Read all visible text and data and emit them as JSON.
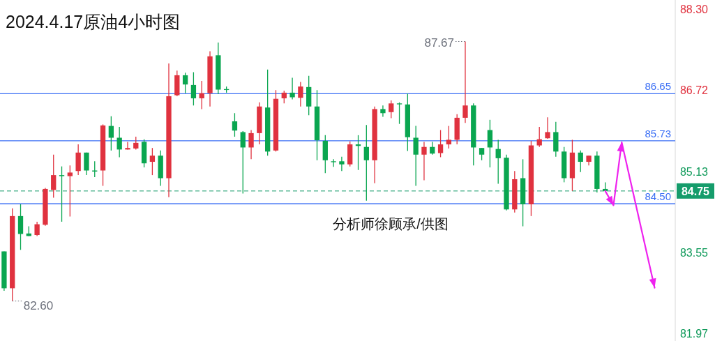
{
  "chart_data": {
    "type": "candlestick",
    "title": "2024.4.17原油4小时图",
    "categories": [
      null,
      null,
      null,
      null,
      null,
      null,
      null,
      null,
      null,
      null,
      null,
      null,
      null,
      null,
      null,
      null,
      null,
      null,
      null,
      null,
      null,
      null,
      null,
      null,
      null,
      null,
      null,
      null,
      null,
      null,
      null,
      null,
      null,
      null,
      null,
      null,
      null,
      null,
      null,
      null,
      null,
      null,
      null,
      null,
      null,
      null,
      null,
      null,
      null,
      null,
      null,
      null,
      null,
      null,
      null,
      null,
      null,
      null,
      null,
      null,
      null,
      null,
      null,
      null,
      null,
      null,
      null,
      null,
      null,
      null,
      null,
      null,
      null,
      null,
      null,
      null,
      null,
      null,
      null,
      null,
      null,
      null
    ],
    "series": [
      {
        "ohlc": [
          [
            83.57,
            83.57,
            82.8,
            82.85
          ],
          [
            82.85,
            84.41,
            82.6,
            84.26
          ],
          [
            84.26,
            84.49,
            83.6,
            83.91
          ],
          [
            83.92,
            84.06,
            83.87,
            83.87
          ],
          [
            83.89,
            84.15,
            83.87,
            84.1
          ],
          [
            84.09,
            84.81,
            84.07,
            84.79
          ],
          [
            84.77,
            85.46,
            84.62,
            85.06
          ],
          [
            85.06,
            85.23,
            84.15,
            85.04
          ],
          [
            85.04,
            85.25,
            84.25,
            85.11
          ],
          [
            85.14,
            85.66,
            85.06,
            85.5
          ],
          [
            85.5,
            85.5,
            85.06,
            85.15
          ],
          [
            85.15,
            85.33,
            85.02,
            85.13
          ],
          [
            85.15,
            86.05,
            84.85,
            86.03
          ],
          [
            86.02,
            86.21,
            85.54,
            85.79
          ],
          [
            85.79,
            86.0,
            85.41,
            85.56
          ],
          [
            85.56,
            85.71,
            85.56,
            85.59
          ],
          [
            85.58,
            85.81,
            85.56,
            85.69
          ],
          [
            85.71,
            85.76,
            85.21,
            85.29
          ],
          [
            85.32,
            85.59,
            85.06,
            85.44
          ],
          [
            85.44,
            85.54,
            84.85,
            85.0
          ],
          [
            85.0,
            87.24,
            84.63,
            86.6
          ],
          [
            86.62,
            87.1,
            86.6,
            87.01
          ],
          [
            87.01,
            87.06,
            86.66,
            86.83
          ],
          [
            86.82,
            87.07,
            86.42,
            86.56
          ],
          [
            86.56,
            86.9,
            86.35,
            86.66
          ],
          [
            86.66,
            87.48,
            86.4,
            87.38
          ],
          [
            87.4,
            87.65,
            86.64,
            86.73
          ],
          [
            86.74,
            86.79,
            86.67,
            86.73
          ],
          [
            86.11,
            86.27,
            85.81,
            85.93
          ],
          [
            85.9,
            85.92,
            84.7,
            85.6
          ],
          [
            85.6,
            85.94,
            85.37,
            85.88
          ],
          [
            85.88,
            86.48,
            85.66,
            86.4
          ],
          [
            86.38,
            87.12,
            85.44,
            85.52
          ],
          [
            85.54,
            86.72,
            85.52,
            86.55
          ],
          [
            86.56,
            86.71,
            86.46,
            86.67
          ],
          [
            86.67,
            86.96,
            86.54,
            86.58
          ],
          [
            86.57,
            86.88,
            86.4,
            86.79
          ],
          [
            86.78,
            87.0,
            86.23,
            86.4
          ],
          [
            86.4,
            86.72,
            85.35,
            85.74
          ],
          [
            85.73,
            85.84,
            85.1,
            85.35
          ],
          [
            85.33,
            85.37,
            85.22,
            85.32
          ],
          [
            85.33,
            85.42,
            85.14,
            85.27
          ],
          [
            85.27,
            85.72,
            85.23,
            85.66
          ],
          [
            85.66,
            85.84,
            85.16,
            85.63
          ],
          [
            85.61,
            86.04,
            84.56,
            85.35
          ],
          [
            85.35,
            86.4,
            84.9,
            86.35
          ],
          [
            86.35,
            86.42,
            86.2,
            86.27
          ],
          [
            86.29,
            86.52,
            86.17,
            86.46
          ],
          [
            86.46,
            86.48,
            86.06,
            86.45
          ],
          [
            86.44,
            86.65,
            85.53,
            85.8
          ],
          [
            85.79,
            86.02,
            84.85,
            85.46
          ],
          [
            85.46,
            85.71,
            84.96,
            85.61
          ],
          [
            85.61,
            85.71,
            85.46,
            85.48
          ],
          [
            85.49,
            85.94,
            85.41,
            85.66
          ],
          [
            85.66,
            86.02,
            85.58,
            85.75
          ],
          [
            85.75,
            86.25,
            85.66,
            86.18
          ],
          [
            86.18,
            87.67,
            86.08,
            86.42
          ],
          [
            86.42,
            86.46,
            85.25,
            85.6
          ],
          [
            85.59,
            85.59,
            85.35,
            85.46
          ],
          [
            85.94,
            86.14,
            85.21,
            85.6
          ],
          [
            85.57,
            85.75,
            84.89,
            85.39
          ],
          [
            85.4,
            85.46,
            84.37,
            84.39
          ],
          [
            84.39,
            85.14,
            84.33,
            84.98
          ],
          [
            85.0,
            85.37,
            84.06,
            84.49
          ],
          [
            84.49,
            85.73,
            84.26,
            85.64
          ],
          [
            85.64,
            86.0,
            85.61,
            85.76
          ],
          [
            85.78,
            86.19,
            85.77,
            85.9
          ],
          [
            85.9,
            86.1,
            85.42,
            85.52
          ],
          [
            85.52,
            85.61,
            84.92,
            85.0
          ],
          [
            85.0,
            85.75,
            84.75,
            85.5
          ],
          [
            85.5,
            85.54,
            85.12,
            85.32
          ],
          [
            85.32,
            85.44,
            85.25,
            85.44
          ],
          [
            85.44,
            85.52,
            84.72,
            84.79
          ],
          [
            84.79,
            84.92,
            84.75,
            84.75
          ],
          null,
          null,
          null,
          null,
          null,
          null,
          null,
          null
        ],
        "colors": [
          "#0aa650",
          "#e0323f",
          "#0aa650",
          "#0aa650",
          "#e0323f",
          "#e0323f",
          "#e0323f",
          "#0aa650",
          "#e0323f",
          "#e0323f",
          "#0aa650",
          "#0aa650",
          "#e0323f",
          "#0aa650",
          "#0aa650",
          "#e0323f",
          "#e0323f",
          "#0aa650",
          "#e0323f",
          "#0aa650",
          "#e0323f",
          "#e0323f",
          "#0aa650",
          "#0aa650",
          "#e0323f",
          "#e0323f",
          "#0aa650",
          "#0aa650",
          "#0aa650",
          "#0aa650",
          "#e0323f",
          "#e0323f",
          "#0aa650",
          "#e0323f",
          "#e0323f",
          "#0aa650",
          "#e0323f",
          "#0aa650",
          "#0aa650",
          "#0aa650",
          "#0aa650",
          "#0aa650",
          "#e0323f",
          "#0aa650",
          "#0aa650",
          "#e0323f",
          "#0aa650",
          "#e0323f",
          "#0aa650",
          "#0aa650",
          "#0aa650",
          "#e0323f",
          "#0aa650",
          "#e0323f",
          "#e0323f",
          "#e0323f",
          "#e0323f",
          "#0aa650",
          "#0aa650",
          "#0aa650",
          "#0aa650",
          "#0aa650",
          "#e0323f",
          "#0aa650",
          "#e0323f",
          "#e0323f",
          "#e0323f",
          "#0aa650",
          "#0aa650",
          "#e0323f",
          "#0aa650",
          "#e0323f",
          "#0aa650",
          "#0aa650",
          null,
          null,
          null,
          null,
          null,
          null,
          null,
          null
        ]
      },
      {
        "type": "line",
        "color": "#ee22ee",
        "values": [
          null,
          null,
          null,
          null,
          null,
          null,
          null,
          null,
          null,
          null,
          null,
          null,
          null,
          null,
          null,
          null,
          null,
          null,
          null,
          null,
          null,
          null,
          null,
          null,
          null,
          null,
          null,
          null,
          null,
          null,
          null,
          null,
          null,
          null,
          null,
          null,
          null,
          null,
          null,
          null,
          null,
          null,
          null,
          null,
          null,
          null,
          null,
          null,
          null,
          null,
          null,
          null,
          null,
          null,
          null,
          null,
          null,
          null,
          null,
          null,
          null,
          null,
          null,
          null,
          null,
          null,
          null,
          null,
          null,
          null,
          null,
          null,
          null,
          84.75,
          84.47,
          85.7,
          null,
          null,
          null,
          82.86,
          null,
          null
        ]
      }
    ],
    "ylim": [
      81.82,
      88.48
    ],
    "yticks": [
      {
        "value": 88.3,
        "label": "88.30"
      },
      86.72,
      85.13,
      83.55,
      81.97
    ],
    "ref_lines": [
      {
        "axis": "y",
        "value": 86.65,
        "label": "86.65",
        "color": "#3b6ff5"
      },
      {
        "axis": "y",
        "value": 85.73,
        "label": "85.73",
        "color": "#3b6ff5"
      },
      {
        "axis": "y",
        "value": 84.5,
        "label": "84.50",
        "color": "#3b6ff5"
      },
      {
        "axis": "y",
        "value": 84.75,
        "label": "84.75",
        "color": "#159c6b",
        "line_style": "dashed"
      }
    ],
    "annotations": [
      "87.67",
      "82.60",
      "分析师徐顾承/供图"
    ]
  }
}
